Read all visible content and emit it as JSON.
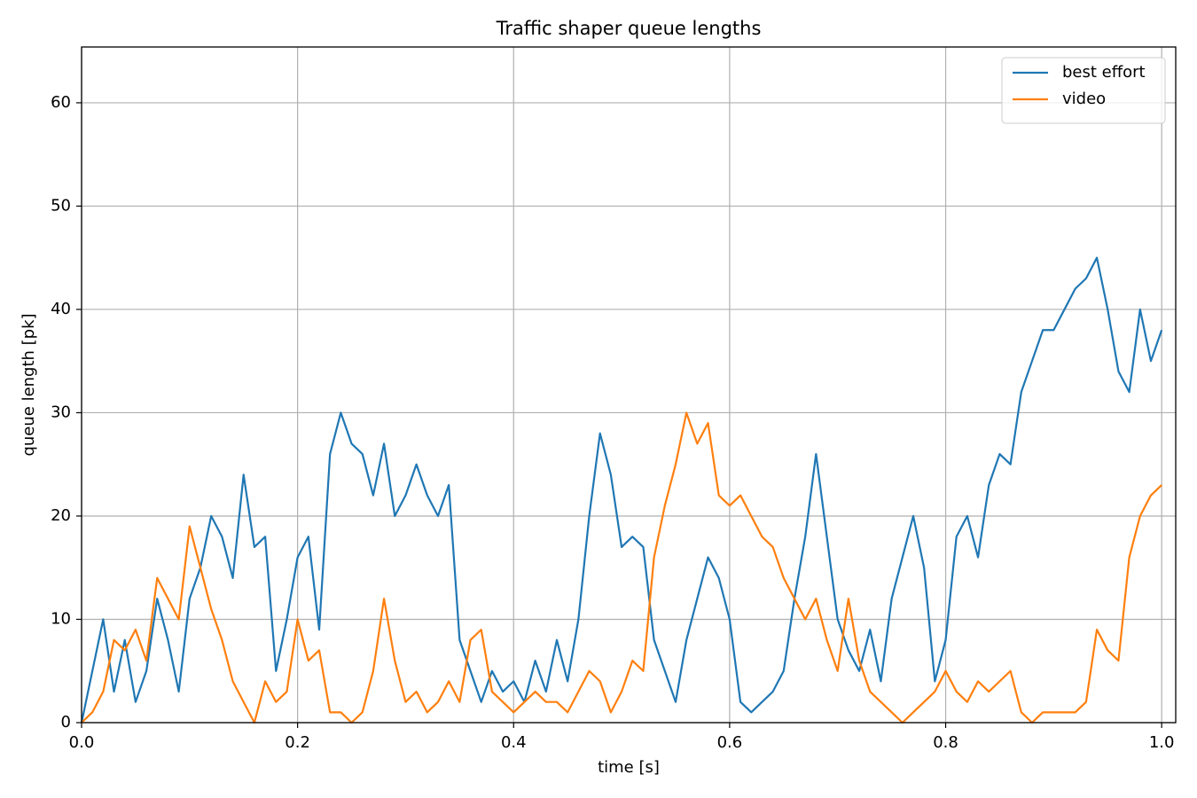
{
  "chart_data": {
    "type": "line",
    "title": "Traffic shaper queue lengths",
    "xlabel": "time [s]",
    "ylabel": "queue length [pk]",
    "x": [
      0,
      0.01,
      0.02,
      0.03,
      0.04,
      0.05,
      0.06,
      0.07,
      0.08,
      0.09,
      0.1,
      0.11,
      0.12,
      0.13,
      0.14,
      0.15,
      0.16,
      0.17,
      0.18,
      0.19,
      0.2,
      0.21,
      0.22,
      0.23,
      0.24,
      0.25,
      0.26,
      0.27,
      0.28,
      0.29,
      0.3,
      0.31,
      0.32,
      0.33,
      0.34,
      0.35,
      0.36,
      0.37,
      0.38,
      0.39,
      0.4,
      0.41,
      0.42,
      0.43,
      0.44,
      0.45,
      0.46,
      0.47,
      0.48,
      0.49,
      0.5,
      0.51,
      0.52,
      0.53,
      0.54,
      0.55,
      0.56,
      0.57,
      0.58,
      0.59,
      0.6,
      0.61,
      0.62,
      0.63,
      0.64,
      0.65,
      0.66,
      0.67,
      0.68,
      0.69,
      0.7,
      0.71,
      0.72,
      0.73,
      0.74,
      0.75,
      0.76,
      0.77,
      0.78,
      0.79,
      0.8,
      0.81,
      0.82,
      0.83,
      0.84,
      0.85,
      0.86,
      0.87,
      0.88,
      0.89,
      0.9,
      0.91,
      0.92,
      0.93,
      0.94,
      0.95,
      0.96,
      0.97,
      0.98,
      0.99,
      1
    ],
    "series": [
      {
        "name": "best effort",
        "color": "#1f77b4",
        "values": [
          0,
          5,
          10,
          3,
          8,
          2,
          5,
          12,
          8,
          3,
          12,
          15,
          20,
          18,
          14,
          24,
          17,
          18,
          5,
          10,
          16,
          18,
          9,
          26,
          30,
          27,
          26,
          22,
          27,
          20,
          22,
          25,
          22,
          20,
          23,
          8,
          5,
          2,
          5,
          3,
          4,
          2,
          6,
          3,
          8,
          4,
          10,
          20,
          28,
          24,
          17,
          18,
          17,
          8,
          5,
          2,
          8,
          12,
          16,
          14,
          10,
          2,
          1,
          2,
          3,
          5,
          12,
          18,
          26,
          18,
          10,
          7,
          5,
          9,
          4,
          12,
          16,
          20,
          15,
          4,
          8,
          18,
          20,
          16,
          23,
          26,
          25,
          32,
          35,
          38,
          38,
          40,
          42,
          43,
          45,
          40,
          34,
          32,
          40,
          35,
          38
        ]
      },
      {
        "name": "video",
        "color": "#ff7f0e",
        "values": [
          0,
          1,
          3,
          8,
          7,
          9,
          6,
          14,
          12,
          10,
          19,
          15,
          11,
          8,
          4,
          2,
          0,
          4,
          2,
          3,
          10,
          6,
          7,
          1,
          1,
          0,
          1,
          5,
          12,
          6,
          2,
          3,
          1,
          2,
          4,
          2,
          8,
          9,
          3,
          2,
          1,
          2,
          3,
          2,
          2,
          1,
          3,
          5,
          4,
          1,
          3,
          6,
          5,
          16,
          21,
          25,
          30,
          27,
          29,
          22,
          21,
          22,
          20,
          18,
          17,
          14,
          12,
          10,
          12,
          8,
          5,
          12,
          6,
          3,
          2,
          1,
          0,
          1,
          2,
          3,
          5,
          3,
          2,
          4,
          3,
          4,
          5,
          1,
          0,
          1,
          1,
          1,
          1,
          2,
          9,
          7,
          6,
          16,
          20,
          22,
          23
        ]
      }
    ],
    "xlim": [
      0,
      1.013
    ],
    "ylim": [
      0,
      65.4
    ],
    "xticks": [
      {
        "value": 0,
        "label": "0.0"
      },
      0.2,
      0.4,
      0.6,
      0.8,
      {
        "value": 1,
        "label": "1.0"
      }
    ],
    "yticks": [
      0,
      10,
      20,
      30,
      40,
      50,
      60
    ],
    "grid": true,
    "legend": "upper right"
  }
}
